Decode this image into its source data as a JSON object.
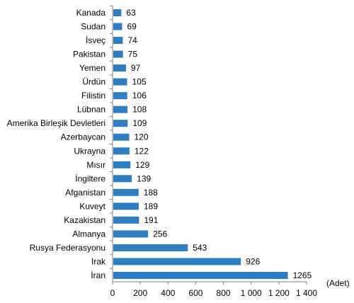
{
  "chart_data": {
    "type": "bar",
    "orientation": "horizontal",
    "categories": [
      "Kanada",
      "Sudan",
      "İsveç",
      "Pakistan",
      "Yemen",
      "Ürdün",
      "Filistin",
      "Lübnan",
      "Amerika Birleşik Devletleri",
      "Azerbaycan",
      "Ukrayna",
      "Mısır",
      "İngiltere",
      "Afganistan",
      "Kuveyt",
      "Kazakistan",
      "Almanya",
      "Rusya Federasyonu",
      "Irak",
      "İran"
    ],
    "values": [
      63,
      69,
      74,
      75,
      97,
      105,
      106,
      108,
      109,
      120,
      122,
      129,
      139,
      188,
      189,
      191,
      256,
      543,
      926,
      1265
    ],
    "value_labels": [
      "63",
      "69",
      "74",
      "75",
      "97",
      "105",
      "106",
      "108",
      "109",
      "120",
      "122",
      "129",
      "139",
      "188",
      "189",
      "191",
      "256",
      "543",
      "926",
      "1265"
    ],
    "xticks": [
      0,
      200,
      400,
      600,
      800,
      1000,
      1200,
      1400
    ],
    "xtick_labels": [
      "0",
      "200",
      "400",
      "600",
      "800",
      "1 000",
      "1 200",
      "1 400"
    ],
    "xlim": [
      0,
      1400
    ],
    "unit_label": "(Adet)",
    "title": "",
    "xlabel": "",
    "ylabel": "",
    "grid": false,
    "legend": false,
    "bar_color": "#2e7ec1",
    "axis_color": "#808080"
  }
}
